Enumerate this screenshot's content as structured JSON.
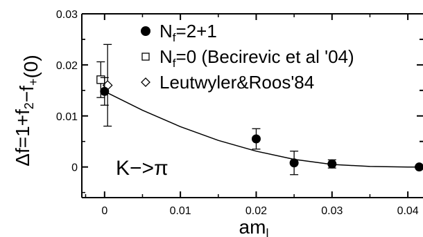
{
  "chart_data": {
    "type": "scatter",
    "xlabel": "am_l",
    "ylabel": "Δf=1+f_2−f_+(0)",
    "xlim": [
      -0.003,
      0.042
    ],
    "ylim": [
      -0.006,
      0.03
    ],
    "x_ticks": [
      "0",
      "0.01",
      "0.02",
      "0.03",
      "0.04"
    ],
    "y_ticks": [
      "0",
      "0.01",
      "0.02",
      "0.03"
    ],
    "annotation": "K−>π",
    "legend": {
      "placement": "top-right"
    },
    "series": [
      {
        "name": "N_f=2+1",
        "marker": "filled-circle",
        "points": [
          {
            "x": 0.0,
            "y": 0.0148,
            "err": 0.0027
          },
          {
            "x": 0.02,
            "y": 0.0055,
            "err": 0.002
          },
          {
            "x": 0.025,
            "y": 0.0008,
            "err": 0.0023
          },
          {
            "x": 0.03,
            "y": 0.0006,
            "err": 0.0008
          },
          {
            "x": 0.0415,
            "y": 0.0,
            "err": 0.0
          }
        ]
      },
      {
        "name": "N_f=0 (Becirevic et al '04)",
        "marker": "open-square",
        "points": [
          {
            "x": -0.0005,
            "y": 0.0171,
            "err": 0.0035
          }
        ]
      },
      {
        "name": "Leutwyler&Roos'84",
        "marker": "open-diamond",
        "points": [
          {
            "x": 0.0004,
            "y": 0.016,
            "err": 0.008
          }
        ]
      }
    ],
    "fit_curve": {
      "description": "quadratic fit to N_f=2+1 data",
      "points": [
        [
          0.0,
          0.0148
        ],
        [
          0.005,
          0.0111
        ],
        [
          0.01,
          0.0079
        ],
        [
          0.015,
          0.0052
        ],
        [
          0.02,
          0.0031
        ],
        [
          0.025,
          0.0015
        ],
        [
          0.03,
          0.0005
        ],
        [
          0.035,
          0.0001
        ],
        [
          0.04,
          0.0
        ],
        [
          0.042,
          0.0
        ]
      ]
    }
  }
}
